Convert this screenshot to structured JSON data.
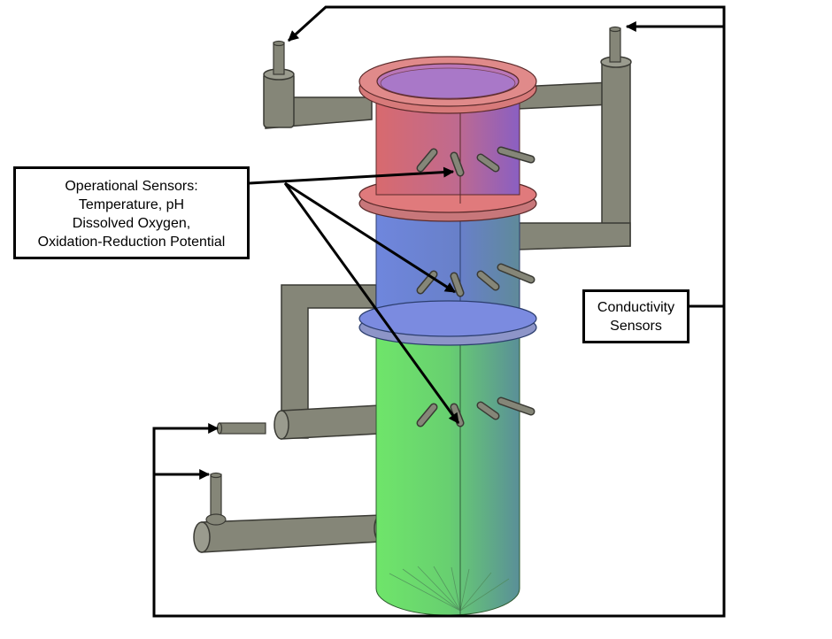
{
  "labels": {
    "operational": {
      "lines": [
        "Operational Sensors:",
        "Temperature, pH",
        "Dissolved Oxygen,",
        "Oxidation-Reduction Potential"
      ]
    },
    "conductivity": {
      "lines": [
        "Conductivity",
        "Sensors"
      ]
    }
  },
  "colors": {
    "top_section": "#d86a6e",
    "middle_section": "#6f86dd",
    "bottom_section": "#6fe06a",
    "pipe": "#858678",
    "line": "#000000"
  }
}
